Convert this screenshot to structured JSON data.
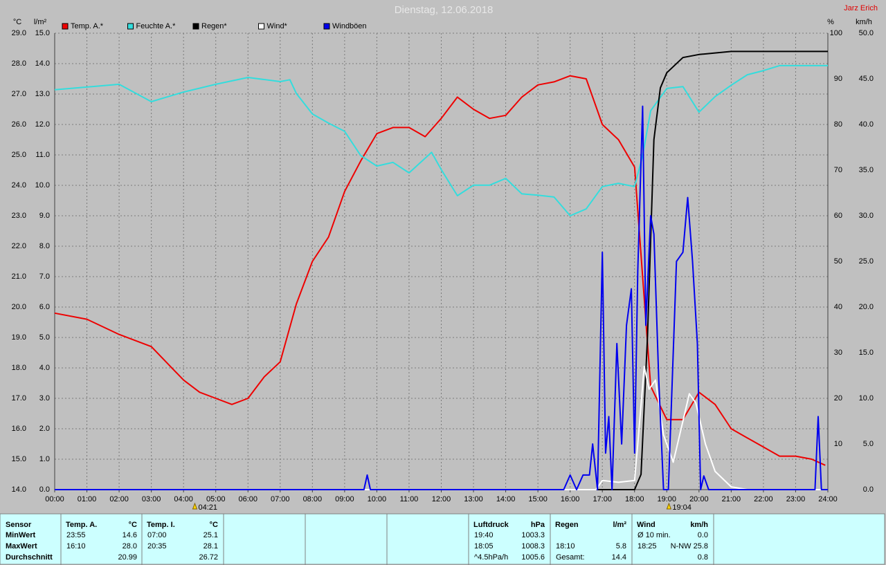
{
  "chart_data": {
    "type": "line",
    "title": "Dienstag, 12.06.2018",
    "corner_label": "Jarz Erich",
    "grid": true,
    "legend": "top",
    "xlim": [
      0,
      24
    ],
    "xticks": [
      {
        "value": 0,
        "label": "00:00"
      },
      {
        "value": 1,
        "label": "01:00"
      },
      {
        "value": 2,
        "label": "02:00"
      },
      {
        "value": 3,
        "label": "03:00"
      },
      {
        "value": 4,
        "label": "04:00"
      },
      {
        "value": 5,
        "label": "05:00"
      },
      {
        "value": 6,
        "label": "06:00"
      },
      {
        "value": 7,
        "label": "07:00"
      },
      {
        "value": 8,
        "label": "08:00"
      },
      {
        "value": 9,
        "label": "09:00"
      },
      {
        "value": 10,
        "label": "10:00"
      },
      {
        "value": 11,
        "label": "11:00"
      },
      {
        "value": 12,
        "label": "12:00"
      },
      {
        "value": 13,
        "label": "13:00"
      },
      {
        "value": 14,
        "label": "14:00"
      },
      {
        "value": 15,
        "label": "15:00"
      },
      {
        "value": 16,
        "label": "16:00"
      },
      {
        "value": 17,
        "label": "17:00"
      },
      {
        "value": 18,
        "label": "18:00"
      },
      {
        "value": 19,
        "label": "19:00"
      },
      {
        "value": 20,
        "label": "20:00"
      },
      {
        "value": 21,
        "label": "21:00"
      },
      {
        "value": 22,
        "label": "22:00"
      },
      {
        "value": 23,
        "label": "23:00"
      },
      {
        "value": 24,
        "label": "24:00"
      }
    ],
    "ylabel": "°C",
    "ylim": [
      14,
      29
    ],
    "yticks": [
      {
        "value": 14,
        "label": "14.0"
      },
      {
        "value": 15,
        "label": "15.0"
      },
      {
        "value": 16,
        "label": "16.0"
      },
      {
        "value": 17,
        "label": "17.0"
      },
      {
        "value": 18,
        "label": "18.0"
      },
      {
        "value": 19,
        "label": "19.0"
      },
      {
        "value": 20,
        "label": "20.0"
      },
      {
        "value": 21,
        "label": "21.0"
      },
      {
        "value": 22,
        "label": "22.0"
      },
      {
        "value": 23,
        "label": "23.0"
      },
      {
        "value": 24,
        "label": "24.0"
      },
      {
        "value": 25,
        "label": "25.0"
      },
      {
        "value": 26,
        "label": "26.0"
      },
      {
        "value": 27,
        "label": "27.0"
      },
      {
        "value": 28,
        "label": "28.0"
      },
      {
        "value": 29,
        "label": "29.0"
      }
    ],
    "y3label": "l/m²",
    "y3lim": [
      0,
      15
    ],
    "y3ticks": [
      {
        "value": 0,
        "label": "0.0"
      },
      {
        "value": 1,
        "label": "1.0"
      },
      {
        "value": 2,
        "label": "2.0"
      },
      {
        "value": 3,
        "label": "3.0"
      },
      {
        "value": 4,
        "label": "4.0"
      },
      {
        "value": 5,
        "label": "5.0"
      },
      {
        "value": 6,
        "label": "6.0"
      },
      {
        "value": 7,
        "label": "7.0"
      },
      {
        "value": 8,
        "label": "8.0"
      },
      {
        "value": 9,
        "label": "9.0"
      },
      {
        "value": 10,
        "label": "10.0"
      },
      {
        "value": 11,
        "label": "11.0"
      },
      {
        "value": 12,
        "label": "12.0"
      },
      {
        "value": 13,
        "label": "13.0"
      },
      {
        "value": 14,
        "label": "14.0"
      },
      {
        "value": 15,
        "label": "15.0"
      }
    ],
    "y2label": "%",
    "y2lim": [
      0,
      100
    ],
    "y2ticks": [
      10,
      20,
      30,
      40,
      50,
      60,
      70,
      80,
      90,
      100
    ],
    "y4label": "km/h",
    "y4lim": [
      0,
      50
    ],
    "y4ticks": [
      {
        "value": 0,
        "label": "0.0"
      },
      {
        "value": 5,
        "label": "5.0"
      },
      {
        "value": 10,
        "label": "10.0"
      },
      {
        "value": 15,
        "label": "15.0"
      },
      {
        "value": 20,
        "label": "20.0"
      },
      {
        "value": 25,
        "label": "25.0"
      },
      {
        "value": 30,
        "label": "30.0"
      },
      {
        "value": 35,
        "label": "35.0"
      },
      {
        "value": 40,
        "label": "40.0"
      },
      {
        "value": 45,
        "label": "45.0"
      },
      {
        "value": 50,
        "label": "50.0"
      }
    ],
    "series": [
      {
        "name": "Temp. A.*",
        "color": "#ee0000",
        "axis": "y",
        "x": [
          0,
          1,
          2,
          3,
          4,
          4.5,
          5,
          5.5,
          6,
          6.5,
          7,
          7.5,
          8,
          8.5,
          9,
          9.5,
          10,
          10.5,
          11,
          11.5,
          12,
          12.5,
          13,
          13.5,
          14,
          14.5,
          15,
          15.5,
          16,
          16.5,
          17,
          17.5,
          18,
          18.25,
          18.5,
          19,
          19.5,
          20,
          20.5,
          21,
          21.5,
          22,
          22.5,
          23,
          23.5,
          23.92
        ],
        "values": [
          19.8,
          19.6,
          19.1,
          18.7,
          17.6,
          17.2,
          17.0,
          16.8,
          17.0,
          17.7,
          18.2,
          20.1,
          21.5,
          22.3,
          23.8,
          24.8,
          25.7,
          25.9,
          25.9,
          25.6,
          26.2,
          26.9,
          26.5,
          26.2,
          26.3,
          26.9,
          27.3,
          27.4,
          27.6,
          27.5,
          26.0,
          25.5,
          24.6,
          21.0,
          17.4,
          16.3,
          16.3,
          17.2,
          16.8,
          16.0,
          15.7,
          15.4,
          15.1,
          15.1,
          15.0,
          14.8
        ]
      },
      {
        "name": "Feuchte A.*",
        "color": "#33dddd",
        "axis": "y2",
        "x": [
          0,
          2,
          3,
          4,
          5,
          6,
          7,
          7.3,
          7.5,
          8,
          8.5,
          9,
          9.5,
          10,
          10.5,
          11,
          11.7,
          12,
          12.5,
          13,
          13.5,
          14,
          14.5,
          15,
          15.5,
          16,
          16.5,
          17,
          17.5,
          18,
          18.25,
          18.5,
          19,
          19.5,
          20,
          20.5,
          21,
          21.5,
          22,
          22.5,
          23,
          24
        ],
        "values": [
          87.6,
          88.8,
          85.0,
          87.1,
          88.8,
          90.3,
          89.4,
          89.8,
          86.8,
          82.3,
          80.3,
          78.5,
          73.2,
          70.9,
          71.7,
          69.4,
          73.9,
          70.1,
          64.4,
          66.7,
          66.7,
          68.2,
          64.8,
          64.5,
          64.1,
          60.0,
          61.5,
          66.4,
          67.1,
          66.4,
          73.2,
          83.0,
          87.9,
          88.3,
          82.7,
          86.1,
          88.6,
          90.9,
          91.8,
          92.9,
          92.9,
          92.9
        ]
      },
      {
        "name": "Regen*",
        "color": "#000000",
        "axis": "y3",
        "x": [
          0,
          18,
          18.2,
          18.4,
          18.6,
          18.8,
          19,
          19.5,
          20,
          21,
          24
        ],
        "values": [
          0,
          0,
          0.5,
          5.0,
          11.5,
          13.2,
          13.7,
          14.2,
          14.3,
          14.4,
          14.4
        ]
      },
      {
        "name": "Wind*",
        "color": "#ffffff",
        "axis": "y4",
        "x": [
          0,
          16.8,
          17,
          17.5,
          18,
          18.1,
          18.3,
          18.45,
          18.65,
          18.9,
          19.2,
          19.5,
          19.7,
          19.9,
          20.2,
          20.5,
          21,
          21.5,
          24
        ],
        "values": [
          0,
          0,
          1.0,
          0.8,
          1.0,
          5.0,
          13.5,
          11.0,
          12.0,
          6.0,
          3.0,
          7.5,
          10.5,
          9.5,
          5.0,
          2.0,
          0.3,
          0,
          0
        ]
      },
      {
        "name": "Windböen",
        "color": "#0000ee",
        "axis": "y4",
        "x": [
          0,
          9.6,
          9.7,
          9.8,
          15.8,
          16.0,
          16.2,
          16.4,
          16.6,
          16.7,
          16.85,
          17.0,
          17.1,
          17.2,
          17.3,
          17.45,
          17.6,
          17.75,
          17.9,
          18.0,
          18.1,
          18.25,
          18.35,
          18.5,
          18.6,
          18.75,
          18.9,
          19.05,
          19.3,
          19.5,
          19.65,
          19.8,
          19.95,
          20.05,
          20.15,
          20.3,
          23.6,
          23.7,
          23.8,
          24
        ],
        "values": [
          0,
          0,
          1.6,
          0,
          0,
          1.6,
          0,
          1.6,
          1.6,
          5,
          0,
          26,
          4,
          8,
          0,
          16,
          5,
          18,
          22,
          4,
          24,
          42,
          18,
          30,
          28,
          12,
          0,
          0,
          25,
          26,
          32,
          25,
          16,
          0,
          1.5,
          0,
          0,
          8,
          0,
          0
        ]
      }
    ],
    "annotations": [
      {
        "x": 4.35,
        "label": "04:21"
      },
      {
        "x": 19.0667,
        "label": "19:04"
      }
    ]
  },
  "stats_panel": {
    "sensor_column": [
      "Sensor",
      "MinWert",
      "MaxWert",
      "Durchschnitt"
    ],
    "groups": [
      {
        "header": "Temp. A.",
        "unit": "°C",
        "rows": [
          {
            "time": "23:55",
            "value": "14.6"
          },
          {
            "time": "16:10",
            "value": "28.0"
          },
          {
            "value": "20.99"
          }
        ]
      },
      {
        "header": "Temp. I.",
        "unit": "°C",
        "rows": [
          {
            "time": "07:00",
            "value": "25.1"
          },
          {
            "time": "20:35",
            "value": "28.1"
          },
          {
            "value": "26.72"
          }
        ]
      },
      {
        "header": "Luftdruck",
        "unit": "hPa",
        "rows": [
          {
            "time": "19:40",
            "value": "1003.3"
          },
          {
            "time": "18:05",
            "value": "1008.3"
          },
          {
            "time": "^4.5hPa/h",
            "value": "1005.6"
          }
        ]
      },
      {
        "header": "Regen",
        "unit": "l/m²",
        "rows": [
          null,
          {
            "time": "18:10",
            "value": "5.8"
          },
          {
            "time": "Gesamt:",
            "value": "14.4"
          }
        ]
      },
      {
        "header": "Wind",
        "unit": "km/h",
        "rows": [
          {
            "time": "Ø 10 min.",
            "value": "0.0"
          },
          {
            "time": "18:25",
            "value": "N-NW 25.8"
          },
          {
            "value": "0.8"
          }
        ]
      }
    ]
  }
}
